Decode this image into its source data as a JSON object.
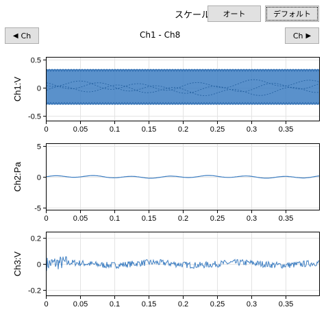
{
  "toolbar": {
    "scale_label": "スケール",
    "auto_button": "オート",
    "default_button": "デフォルト"
  },
  "nav": {
    "prev_label": "Ch",
    "next_label": "Ch",
    "range_label": "Ch1 - Ch8"
  },
  "colors": {
    "series": "#3d7ec2",
    "grid": "#e3e3e3"
  },
  "chart_data": [
    {
      "type": "line",
      "ylabel": "Ch1:V",
      "xlim": [
        0,
        0.4
      ],
      "ylim": [
        -0.6,
        0.55
      ],
      "x_ticks": [
        "0",
        "0.05",
        "0.1",
        "0.15",
        "0.2",
        "0.25",
        "0.3",
        "0.35"
      ],
      "y_ticks": [
        "0.5",
        "0",
        "-0.5"
      ],
      "y_tick_values": [
        0.5,
        0,
        -0.5
      ],
      "signal": {
        "description": "dense oscillation",
        "envelope": [
          -0.3,
          0.33
        ],
        "amplitude": 0.32
      },
      "grid": true
    },
    {
      "type": "line",
      "ylabel": "Ch2:Pa",
      "xlim": [
        0,
        0.4
      ],
      "ylim": [
        -5.5,
        5.5
      ],
      "x_ticks": [
        "0",
        "0.05",
        "0.1",
        "0.15",
        "0.2",
        "0.25",
        "0.3",
        "0.35"
      ],
      "y_ticks": [
        "5",
        "0",
        "-5"
      ],
      "y_tick_values": [
        5,
        0,
        -5
      ],
      "signal": {
        "description": "near zero",
        "amplitude": 0.2
      },
      "grid": true
    },
    {
      "type": "line",
      "ylabel": "Ch3:V",
      "xlim": [
        0,
        0.4
      ],
      "ylim": [
        -0.25,
        0.25
      ],
      "x_ticks": [
        "0",
        "0.05",
        "0.1",
        "0.15",
        "0.2",
        "0.25",
        "0.3",
        "0.35"
      ],
      "y_ticks": [
        "0.2",
        "0",
        "-0.2"
      ],
      "y_tick_values": [
        0.2,
        0,
        -0.2
      ],
      "signal": {
        "description": "noise",
        "amplitude": 0.05
      },
      "grid": true
    }
  ]
}
